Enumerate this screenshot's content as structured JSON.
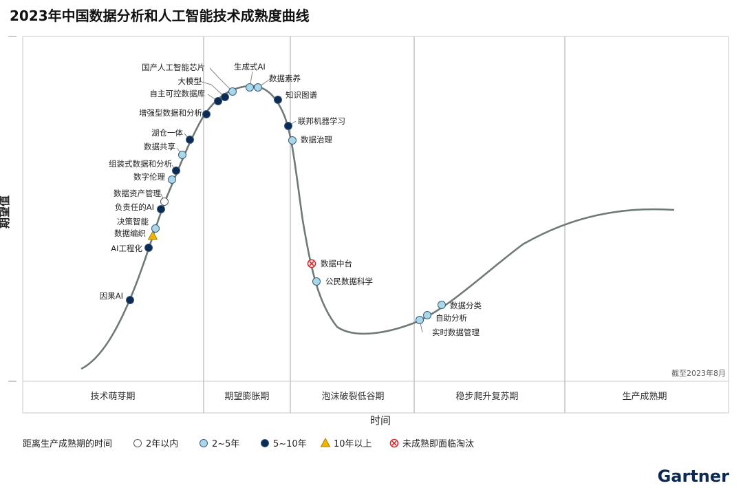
{
  "title": "2023年中国数据分析和人工智能技术成熟度曲线",
  "ylabel": "期望值",
  "xlabel": "时间",
  "as_of": "截至2023年8月",
  "phases": [
    "技术萌芽期",
    "期望膨胀期",
    "泡沫破裂低谷期",
    "稳步爬升复苏期",
    "生产成熟期"
  ],
  "legend": {
    "title": "距离生产成熟期的时间",
    "items": [
      {
        "key": "lt2",
        "label": "2年以内",
        "marker": "circle",
        "color": "#ffffff"
      },
      {
        "key": "2to5",
        "label": "2~5年",
        "marker": "circle",
        "color": "#a8d8ea"
      },
      {
        "key": "5to10",
        "label": "5~10年",
        "marker": "circle",
        "color": "#0b2a55"
      },
      {
        "key": "gt10",
        "label": "10年以上",
        "marker": "triangle",
        "color": "#f0b400"
      },
      {
        "key": "obsolete",
        "label": "未成熟即面临淘汰",
        "marker": "x",
        "color": "#d9262a"
      }
    ]
  },
  "brand": "Gartner",
  "chart_data": {
    "type": "scatter",
    "title": "2023年中国数据分析和人工智能技术成熟度曲线",
    "xlabel": "时间",
    "ylabel": "期望值",
    "categories": [
      "技术萌芽期",
      "期望膨胀期",
      "泡沫破裂低谷期",
      "稳步爬升复苏期",
      "生产成熟期"
    ],
    "technologies": [
      {
        "name": "因果AI",
        "phase": "技术萌芽期",
        "category": "5to10"
      },
      {
        "name": "AI工程化",
        "phase": "技术萌芽期",
        "category": "5to10"
      },
      {
        "name": "数据编织",
        "phase": "技术萌芽期",
        "category": "gt10"
      },
      {
        "name": "决策智能",
        "phase": "技术萌芽期",
        "category": "2to5"
      },
      {
        "name": "负责任的AI",
        "phase": "技术萌芽期",
        "category": "5to10"
      },
      {
        "name": "数据资产管理",
        "phase": "技术萌芽期",
        "category": "lt2"
      },
      {
        "name": "数字伦理",
        "phase": "技术萌芽期",
        "category": "2to5"
      },
      {
        "name": "组装式数据和分析",
        "phase": "技术萌芽期",
        "category": "5to10"
      },
      {
        "name": "数据共享",
        "phase": "技术萌芽期",
        "category": "2to5"
      },
      {
        "name": "湖仓一体",
        "phase": "技术萌芽期",
        "category": "5to10"
      },
      {
        "name": "增强型数据和分析",
        "phase": "期望膨胀期",
        "category": "5to10"
      },
      {
        "name": "自主可控数据库",
        "phase": "期望膨胀期",
        "category": "5to10"
      },
      {
        "name": "大模型",
        "phase": "期望膨胀期",
        "category": "5to10"
      },
      {
        "name": "国产人工智能芯片",
        "phase": "期望膨胀期",
        "category": "2to5"
      },
      {
        "name": "生成式AI",
        "phase": "期望膨胀期",
        "category": "2to5"
      },
      {
        "name": "数据素养",
        "phase": "期望膨胀期",
        "category": "2to5"
      },
      {
        "name": "知识图谱",
        "phase": "期望膨胀期",
        "category": "5to10"
      },
      {
        "name": "联邦机器学习",
        "phase": "泡沫破裂低谷期",
        "category": "5to10"
      },
      {
        "name": "数据治理",
        "phase": "泡沫破裂低谷期",
        "category": "2to5"
      },
      {
        "name": "数据中台",
        "phase": "泡沫破裂低谷期",
        "category": "obsolete"
      },
      {
        "name": "公民数据科学",
        "phase": "泡沫破裂低谷期",
        "category": "2to5"
      },
      {
        "name": "实时数据管理",
        "phase": "稳步爬升复苏期",
        "category": "2to5"
      },
      {
        "name": "自助分析",
        "phase": "稳步爬升复苏期",
        "category": "2to5"
      },
      {
        "name": "数据分类",
        "phase": "稳步爬升复苏期",
        "category": "2to5"
      }
    ]
  }
}
